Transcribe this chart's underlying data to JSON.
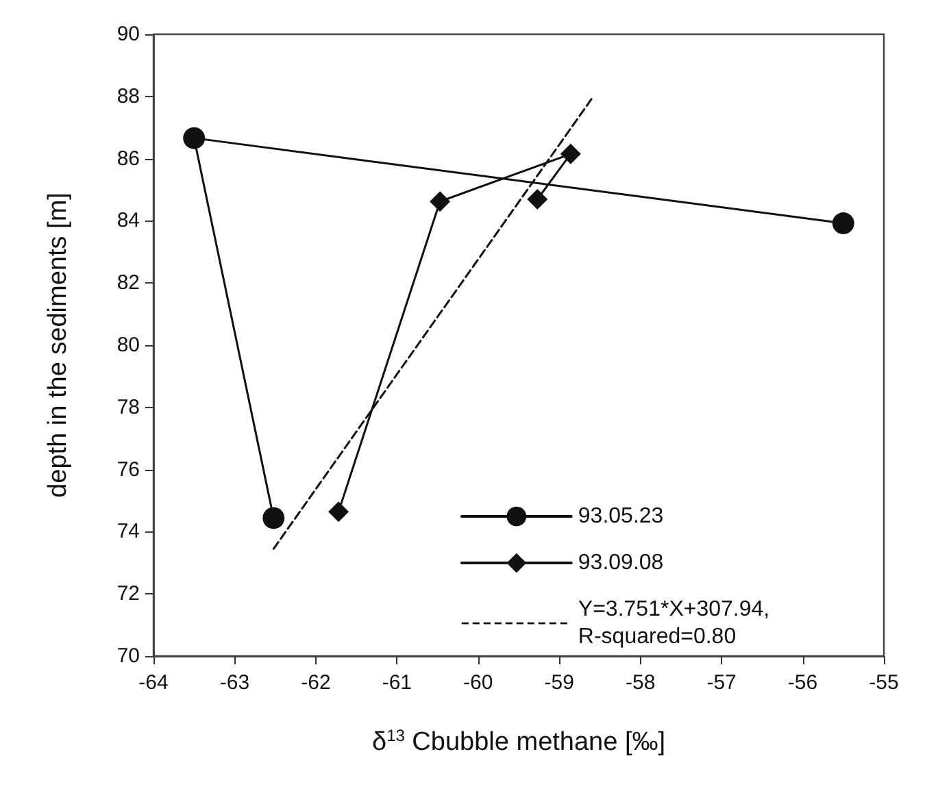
{
  "chart_data": {
    "type": "line",
    "xlabel": "δ$^{13}$ Cbubble methane [‰]",
    "ylabel": "depth in the sediments [m]",
    "xlim": [
      -64,
      -55
    ],
    "xticks": [
      -64,
      -63,
      -62,
      -61,
      -60,
      -59,
      -58,
      -57,
      -56,
      -55
    ],
    "ylim": [
      70,
      90
    ],
    "yticks": [
      70,
      72,
      74,
      76,
      78,
      80,
      82,
      84,
      86,
      88,
      90
    ],
    "grid": false,
    "legend": "bottom right",
    "series": [
      {
        "name": "93.05.23",
        "color": "#111111",
        "marker": "circle",
        "line_style": "solid",
        "x": [
          -55.5,
          -63.5,
          -62.52
        ],
        "values": [
          83.92,
          86.66,
          74.44
        ]
      },
      {
        "name": "93.09.08",
        "color": "#111111",
        "marker": "diamond",
        "line_style": "solid",
        "x": [
          -61.72,
          -60.47,
          -58.86,
          -59.27
        ],
        "values": [
          74.64,
          84.62,
          86.15,
          84.69
        ]
      },
      {
        "name": "Y=3.751*X+307.94, R-squared=0.80",
        "color": "#111111",
        "marker": "none",
        "line_style": "dashed",
        "x": [
          -62.52,
          -58.58
        ],
        "values": [
          73.45,
          88.0
        ]
      }
    ]
  }
}
